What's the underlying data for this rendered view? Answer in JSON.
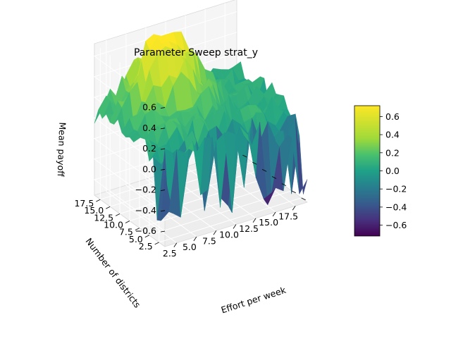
{
  "chart_data": {
    "type": "surface3d",
    "title": "Parameter Sweep strat_y",
    "xlabel": "Effort per week",
    "ylabel": "Number of districts",
    "zlabel": "Mean payoff",
    "x_ticks": [
      "2.5",
      "5.0",
      "7.5",
      "10.0",
      "12.5",
      "15.0",
      "17.5"
    ],
    "y_ticks": [
      "2.5",
      "5.0",
      "7.5",
      "10.0",
      "12.5",
      "15.0",
      "17.5"
    ],
    "z_ticks": [
      "0.6",
      "0.4",
      "0.2",
      "0.0",
      "−0.2",
      "−0.4",
      "−0.6"
    ],
    "xlim": [
      1,
      19
    ],
    "ylim": [
      1,
      19
    ],
    "zlim": [
      -0.75,
      0.72
    ],
    "colormap": "viridis",
    "colorbar": {
      "vmin": -0.72,
      "vmax": 0.72,
      "ticks": [
        "0.6",
        "0.4",
        "0.2",
        "0.0",
        "−0.2",
        "−0.4",
        "−0.6"
      ]
    },
    "grid": true,
    "surface": {
      "x": [
        1,
        2,
        3,
        4,
        5,
        6,
        7,
        8,
        9,
        10,
        11,
        12,
        13,
        14,
        15,
        16,
        17,
        18,
        19
      ],
      "y": [
        1,
        2,
        3,
        4,
        5,
        6,
        7,
        8,
        9,
        10,
        11,
        12,
        13,
        14,
        15,
        16,
        17,
        18,
        19
      ],
      "description": "payoff peaks (~0.7) at mid effort and many districts, near 0 elsewhere, with negative spikes (~-0.6) along low district counts"
    }
  }
}
